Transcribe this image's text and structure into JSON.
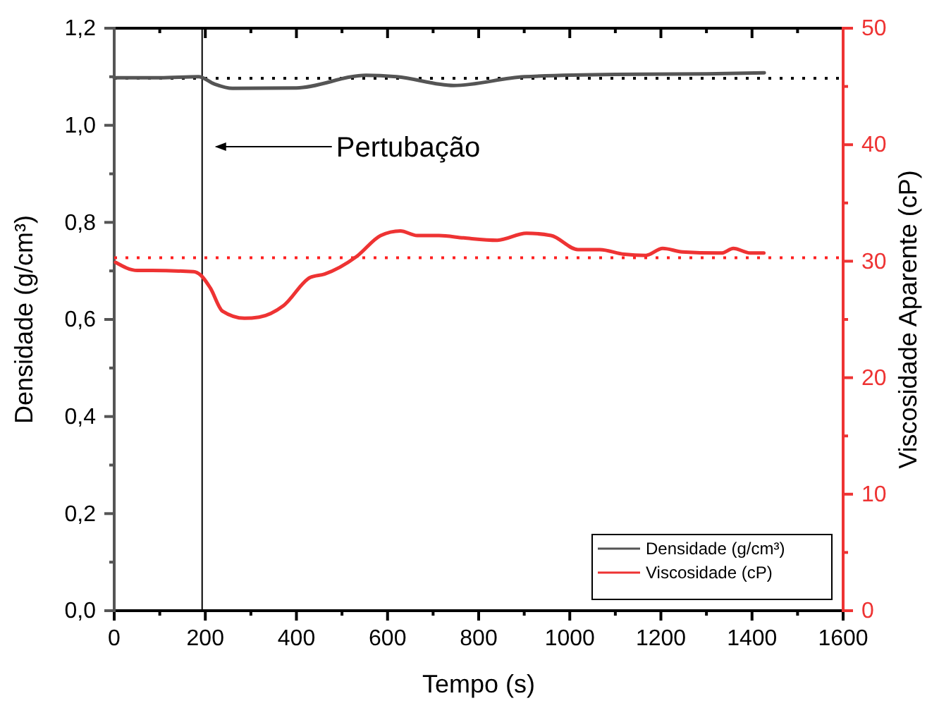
{
  "chart_data": {
    "type": "line",
    "xlabel": "Tempo (s)",
    "ylabel": "Densidade (g/cm³)",
    "y2label": "Viscosidade Aparente (cP)",
    "xlim": [
      0,
      1600
    ],
    "xticks": [
      0,
      {
        "value": 100,
        "label": null
      },
      200,
      {
        "value": 300,
        "label": null
      },
      400,
      {
        "value": 500,
        "label": null
      },
      600,
      {
        "value": 700,
        "label": null
      },
      800,
      {
        "value": 900,
        "label": null
      },
      1000,
      {
        "value": 1100,
        "label": null
      },
      1200,
      {
        "value": 1300,
        "label": null
      },
      1400,
      {
        "value": 1500,
        "label": null
      },
      1600
    ],
    "ylim": [
      0,
      1.2
    ],
    "yticks": [
      {
        "value": 0,
        "label": "0,0"
      },
      {
        "value": 0.1,
        "label": null
      },
      {
        "value": 0.2,
        "label": "0,2"
      },
      {
        "value": 0.3,
        "label": null
      },
      {
        "value": 0.4,
        "label": "0,4"
      },
      {
        "value": 0.5,
        "label": null
      },
      {
        "value": 0.6,
        "label": "0,6"
      },
      {
        "value": 0.7,
        "label": null
      },
      {
        "value": 0.8,
        "label": "0,8"
      },
      {
        "value": 0.9,
        "label": null
      },
      {
        "value": 1.0,
        "label": "1,0"
      },
      {
        "value": 1.1,
        "label": null
      },
      {
        "value": 1.2,
        "label": "1,2"
      }
    ],
    "y2lim": [
      0,
      50
    ],
    "y2ticks": [
      0,
      {
        "value": 5,
        "label": null
      },
      10,
      {
        "value": 15,
        "label": null
      },
      20,
      {
        "value": 25,
        "label": null
      },
      30,
      {
        "value": 35,
        "label": null
      },
      40,
      {
        "value": 45,
        "label": null
      },
      50
    ],
    "legend": "bottom right",
    "grid": false,
    "marker": "none",
    "line_style": "solid",
    "ref_lines": [
      {
        "axis": "x",
        "value": 193,
        "color": "#000000",
        "line_style": "solid"
      },
      {
        "axis": "y",
        "value": 1.097,
        "color": "#000000",
        "line_style": "dotted"
      },
      {
        "axis": "y2",
        "value": 30.3,
        "color": "#ff2020",
        "line_style": "dotted"
      }
    ],
    "annotations": [
      "Pertubação"
    ],
    "series": [
      {
        "name": "Densidade (g/cm³)",
        "color": "#555555",
        "x": [
          0,
          100,
          185,
          220,
          260,
          400,
          553,
          620,
          745,
          900,
          1100,
          1300,
          1427
        ],
        "values": [
          1.098,
          1.098,
          1.1,
          1.085,
          1.076,
          1.077,
          1.103,
          1.1,
          1.082,
          1.1,
          1.105,
          1.106,
          1.108
        ]
      },
      {
        "name": "Viscosidade (cP)",
        "color": "#ee3333",
        "axis": "y2",
        "x": [
          3,
          51,
          83,
          174,
          190,
          211,
          238,
          286,
          318,
          372,
          430,
          462,
          532,
          585,
          628,
          665,
          713,
          767,
          841,
          905,
          959,
          1018,
          1066,
          1119,
          1167,
          1204,
          1247,
          1333,
          1359,
          1396,
          1426
        ],
        "values": [
          29.9,
          29.2,
          29.2,
          29.1,
          28.8,
          27.7,
          25.7,
          25.1,
          25.2,
          26.2,
          28.6,
          28.9,
          30.4,
          32.2,
          32.6,
          32.2,
          32.2,
          32.0,
          31.8,
          32.4,
          32.2,
          31.0,
          31.0,
          30.6,
          30.5,
          31.1,
          30.8,
          30.7,
          31.1,
          30.7,
          30.7
        ]
      }
    ]
  }
}
